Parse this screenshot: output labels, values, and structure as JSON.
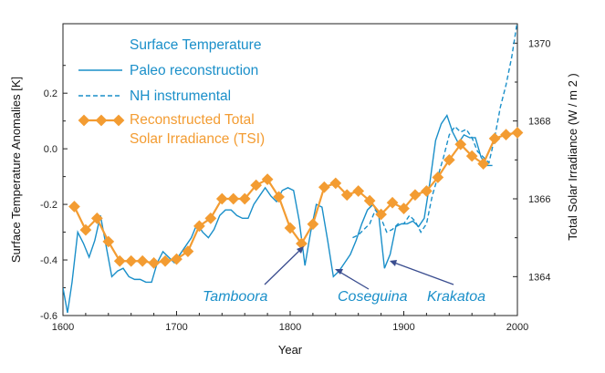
{
  "chart_data": {
    "type": "line",
    "xlabel": "Year",
    "ylabel_left": "Surface Temperature Anomalies [K]",
    "ylabel_right": "Total Solar Irradiance (W / m 2 )",
    "xlim": [
      1600,
      2000
    ],
    "ylim_left": [
      -0.6,
      0.45
    ],
    "ylim_right": [
      1363,
      1370.5
    ],
    "x_ticks": [
      "1600",
      "1700",
      "1800",
      "1900",
      "2000"
    ],
    "y_ticks_left": [
      "0.2",
      "0.0",
      "-0.2",
      "-0.4",
      "-0.6"
    ],
    "y_ticks_right": [
      "1370",
      "1368",
      "1366",
      "1364"
    ],
    "legend": {
      "group_title": "Surface Temperature",
      "entries": [
        "Paleo reconstruction",
        "NH instrumental",
        "Reconstructed Total",
        "Solar Irradiance (TSI)"
      ]
    },
    "series": [
      {
        "name": "Paleo reconstruction",
        "axis": "left",
        "color": "#1a8fc9",
        "style": "solid",
        "x": [
          1600,
          1604,
          1608,
          1613,
          1618,
          1623,
          1628,
          1633,
          1638,
          1643,
          1648,
          1653,
          1658,
          1663,
          1668,
          1673,
          1678,
          1683,
          1688,
          1693,
          1698,
          1703,
          1708,
          1713,
          1718,
          1723,
          1728,
          1733,
          1738,
          1743,
          1748,
          1753,
          1758,
          1763,
          1768,
          1773,
          1778,
          1783,
          1788,
          1793,
          1798,
          1803,
          1808,
          1813,
          1818,
          1823,
          1828,
          1833,
          1838,
          1843,
          1848,
          1853,
          1858,
          1863,
          1868,
          1873,
          1878,
          1883,
          1888,
          1893,
          1898,
          1903,
          1908,
          1913,
          1918,
          1923,
          1928,
          1933,
          1938,
          1943,
          1948,
          1953,
          1958,
          1963,
          1968,
          1973,
          1978
        ],
        "y": [
          -0.5,
          -0.59,
          -0.48,
          -0.3,
          -0.34,
          -0.39,
          -0.33,
          -0.24,
          -0.35,
          -0.46,
          -0.44,
          -0.43,
          -0.46,
          -0.47,
          -0.47,
          -0.48,
          -0.48,
          -0.41,
          -0.37,
          -0.39,
          -0.41,
          -0.38,
          -0.35,
          -0.32,
          -0.27,
          -0.3,
          -0.32,
          -0.29,
          -0.24,
          -0.22,
          -0.22,
          -0.24,
          -0.25,
          -0.25,
          -0.2,
          -0.17,
          -0.14,
          -0.17,
          -0.19,
          -0.15,
          -0.14,
          -0.15,
          -0.26,
          -0.42,
          -0.3,
          -0.2,
          -0.21,
          -0.33,
          -0.46,
          -0.44,
          -0.41,
          -0.38,
          -0.33,
          -0.27,
          -0.22,
          -0.2,
          -0.24,
          -0.43,
          -0.38,
          -0.28,
          -0.27,
          -0.27,
          -0.26,
          -0.28,
          -0.25,
          -0.12,
          0.03,
          0.09,
          0.12,
          0.06,
          0.02,
          0.05,
          0.04,
          0.04,
          -0.03,
          -0.06,
          -0.06
        ]
      },
      {
        "name": "NH instrumental",
        "axis": "left",
        "color": "#1a8fc9",
        "style": "dashed",
        "x": [
          1855,
          1860,
          1865,
          1870,
          1875,
          1880,
          1885,
          1890,
          1895,
          1900,
          1905,
          1910,
          1915,
          1920,
          1925,
          1930,
          1935,
          1940,
          1945,
          1950,
          1955,
          1960,
          1965,
          1970,
          1975,
          1980,
          1985,
          1990,
          1995,
          2000
        ],
        "y": [
          -0.32,
          -0.31,
          -0.29,
          -0.27,
          -0.22,
          -0.25,
          -0.3,
          -0.29,
          -0.27,
          -0.27,
          -0.24,
          -0.26,
          -0.3,
          -0.27,
          -0.17,
          -0.1,
          -0.03,
          0.05,
          0.08,
          0.06,
          0.07,
          0.04,
          -0.01,
          -0.03,
          -0.05,
          0.04,
          0.15,
          0.23,
          0.33,
          0.46
        ]
      },
      {
        "name": "Reconstructed Total Solar Irradiance (TSI)",
        "axis": "right",
        "color": "#f39c32",
        "style": "solid-diamond",
        "x": [
          1610,
          1620,
          1630,
          1640,
          1650,
          1660,
          1670,
          1680,
          1690,
          1700,
          1710,
          1720,
          1730,
          1740,
          1750,
          1760,
          1770,
          1780,
          1790,
          1800,
          1810,
          1820,
          1830,
          1840,
          1850,
          1860,
          1870,
          1880,
          1890,
          1900,
          1910,
          1920,
          1930,
          1940,
          1950,
          1960,
          1970,
          1980,
          1990,
          2000
        ],
        "y": [
          1365.8,
          1365.2,
          1365.5,
          1364.9,
          1364.4,
          1364.4,
          1364.4,
          1364.35,
          1364.4,
          1364.45,
          1364.65,
          1365.3,
          1365.5,
          1366.0,
          1366.0,
          1366.0,
          1366.35,
          1366.5,
          1366.05,
          1365.25,
          1364.85,
          1365.35,
          1366.3,
          1366.4,
          1366.1,
          1366.2,
          1365.95,
          1365.6,
          1365.9,
          1365.75,
          1366.1,
          1366.2,
          1366.55,
          1367.0,
          1367.4,
          1367.1,
          1366.9,
          1367.55,
          1367.65,
          1367.7
        ]
      }
    ],
    "annotations": [
      {
        "text": "Tamboora",
        "target_x": 1815,
        "target_y": -0.41
      },
      {
        "text": "Coseguina",
        "target_x": 1838,
        "target_y": -0.45
      },
      {
        "text": "Krakatoa",
        "target_x": 1883,
        "target_y": -0.43
      }
    ]
  }
}
